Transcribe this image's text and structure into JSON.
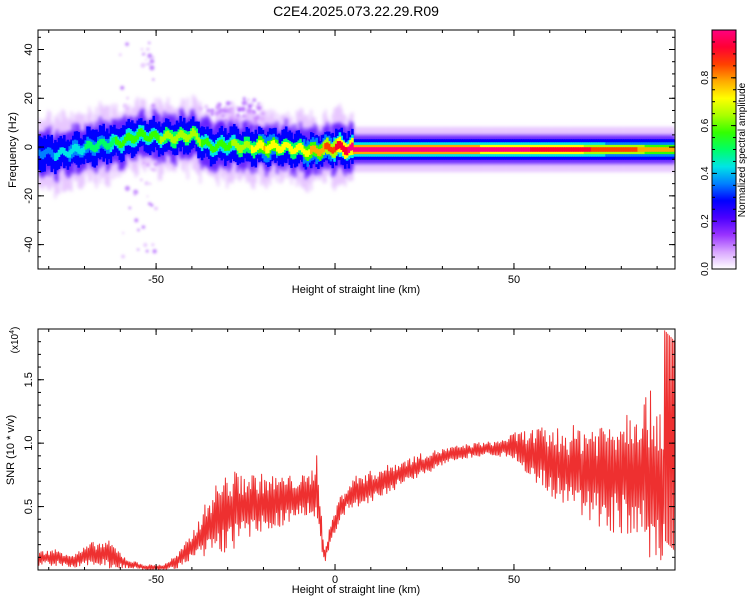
{
  "title": "C2E4.2025.073.22.29.R09",
  "chart_data": [
    {
      "type": "heatmap",
      "xlabel": "Height of straight line (km)",
      "ylabel": "Frequency (Hz)",
      "xlim": [
        -83,
        95
      ],
      "ylim": [
        -50,
        48
      ],
      "x_ticks": [
        -50,
        0,
        50
      ],
      "x_tick_labels": [
        "-50",
        "",
        "50"
      ],
      "y_ticks": [
        -40,
        -20,
        0,
        20,
        40
      ],
      "colorbar": {
        "label": "Normalized spectral amplitude",
        "range": [
          0,
          1
        ],
        "ticks": [
          0.0,
          0.2,
          0.4,
          0.6,
          0.8
        ],
        "tick_labels": [
          "0.0",
          "0.2",
          "0.4",
          "0.6",
          "0.8"
        ],
        "colormap": [
          "#ffffff",
          "#d9a6ff",
          "#9933ff",
          "#4b00ff",
          "#0000ff",
          "#0080ff",
          "#00e5e5",
          "#00ff66",
          "#33ff00",
          "#aaff00",
          "#ffff00",
          "#ffaa00",
          "#ff4000",
          "#ff0033",
          "#ff0080"
        ]
      },
      "ridge": {
        "x": [
          -83,
          -78,
          -72,
          -66,
          -60,
          -55,
          -50,
          -45,
          -40,
          -35,
          -30,
          -25,
          -20,
          -15,
          -10,
          -7,
          -4,
          0,
          5,
          20,
          40,
          60,
          80,
          95
        ],
        "frequency": [
          -2,
          -3,
          -1,
          1,
          2,
          5,
          4,
          4,
          5,
          0,
          1,
          0,
          0,
          0,
          -1,
          -2,
          -1,
          0,
          -1,
          -1,
          -1,
          -1,
          -1,
          -1
        ],
        "amplitude": [
          0.35,
          0.4,
          0.45,
          0.5,
          0.55,
          0.6,
          0.6,
          0.65,
          0.65,
          0.55,
          0.6,
          0.65,
          0.75,
          0.7,
          0.7,
          0.75,
          0.8,
          0.9,
          1.0,
          1.0,
          1.0,
          0.95,
          0.85,
          0.75
        ]
      },
      "speckle": [
        {
          "x": -55,
          "frequency_range": [
            -45,
            45
          ],
          "amplitude": 0.15
        },
        {
          "x": -35,
          "frequency_range": [
            2,
            18
          ],
          "amplitude": 0.12
        },
        {
          "x": -25,
          "frequency_range": [
            8,
            20
          ],
          "amplitude": 0.1
        }
      ]
    },
    {
      "type": "line",
      "xlabel": "Height of straight line (km)",
      "ylabel": "SNR (10 * v/v)",
      "y_multiplier_label": "(x10",
      "y_multiplier_exp": "4",
      "y_multiplier_close": ")",
      "xlim": [
        -83,
        95
      ],
      "ylim": [
        0,
        1.9
      ],
      "x_ticks": [
        -50,
        0,
        50
      ],
      "x_tick_labels": [
        "-50",
        "0",
        "50"
      ],
      "y_ticks": [
        0.5,
        1.0,
        1.5
      ],
      "y_tick_labels": [
        "0.5",
        "1.0",
        "1.5"
      ],
      "color": "#ee3030",
      "series": [
        {
          "x": [
            -83,
            -78,
            -73,
            -68,
            -63,
            -58,
            -53,
            -48,
            -44,
            -40,
            -37,
            -34,
            -31,
            -28,
            -25,
            -21,
            -18,
            -14,
            -10,
            -7,
            -5,
            -3,
            -1,
            1,
            3,
            6,
            10,
            15,
            20,
            25,
            30,
            35,
            40,
            45,
            50,
            55,
            60,
            65,
            70,
            75,
            80,
            85,
            90,
            95
          ],
          "baseline": [
            0.09,
            0.1,
            0.07,
            0.13,
            0.12,
            0.05,
            0.02,
            0.02,
            0.07,
            0.18,
            0.28,
            0.38,
            0.44,
            0.47,
            0.5,
            0.52,
            0.53,
            0.55,
            0.58,
            0.6,
            0.62,
            0.1,
            0.3,
            0.45,
            0.55,
            0.62,
            0.65,
            0.72,
            0.78,
            0.84,
            0.89,
            0.93,
            0.95,
            0.96,
            0.97,
            0.92,
            0.85,
            0.8,
            0.78,
            0.75,
            0.78,
            0.8,
            0.7,
            0.55
          ],
          "swing": [
            0.05,
            0.06,
            0.05,
            0.08,
            0.1,
            0.03,
            0.02,
            0.02,
            0.05,
            0.1,
            0.18,
            0.25,
            0.28,
            0.28,
            0.25,
            0.22,
            0.2,
            0.18,
            0.15,
            0.14,
            0.3,
            0.05,
            0.08,
            0.1,
            0.1,
            0.12,
            0.12,
            0.1,
            0.09,
            0.08,
            0.06,
            0.05,
            0.05,
            0.05,
            0.1,
            0.18,
            0.25,
            0.3,
            0.35,
            0.4,
            0.45,
            0.55,
            0.65,
            0.7
          ]
        }
      ]
    }
  ]
}
